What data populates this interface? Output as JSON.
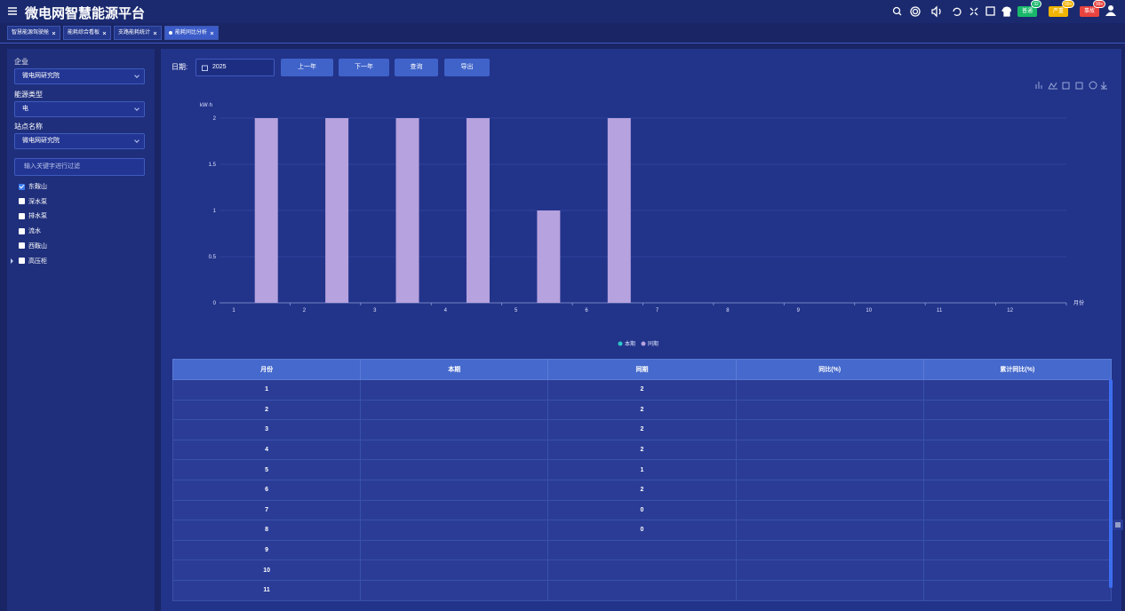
{
  "header": {
    "title": "微电网智慧能源平台",
    "alarms": [
      {
        "label": "普通",
        "count": 32,
        "color": "#19b96b"
      },
      {
        "label": "严重",
        "count": "99+",
        "color": "#f0b400"
      },
      {
        "label": "事故",
        "count": "99+",
        "color": "#e8433f"
      }
    ]
  },
  "tabs": [
    {
      "label": "智慧能源驾驶舱",
      "active": false
    },
    {
      "label": "能耗综合看板",
      "active": false
    },
    {
      "label": "支路能耗统计",
      "active": false
    },
    {
      "label": "能耗同比分析",
      "active": true
    }
  ],
  "sidebar": {
    "fields": [
      {
        "label": "企业",
        "value": "微电网研究院"
      },
      {
        "label": "能源类型",
        "value": "电"
      },
      {
        "label": "站点名称",
        "value": "微电网研究院"
      }
    ],
    "filter_placeholder": "输入关键字进行过滤",
    "tree": [
      {
        "label": "东鞍山",
        "checked": true
      },
      {
        "label": "深水泵",
        "checked": false
      },
      {
        "label": "排水泵",
        "checked": false
      },
      {
        "label": "流水",
        "checked": false
      },
      {
        "label": "西鞍山",
        "checked": false
      },
      {
        "label": "高压柜",
        "checked": false,
        "expandable": true
      }
    ]
  },
  "toolbar": {
    "date_label": "日期:",
    "date": "2025",
    "buttons": [
      "上一年",
      "下一年",
      "查询",
      "导出"
    ]
  },
  "chart_data": {
    "type": "bar",
    "y_label": "kW·h",
    "x_label": "月份",
    "categories": [
      "1",
      "2",
      "3",
      "4",
      "5",
      "6",
      "7",
      "8",
      "9",
      "10",
      "11",
      "12"
    ],
    "series": [
      {
        "name": "本期",
        "color": "#2ec7c9",
        "values": [
          null,
          null,
          null,
          null,
          null,
          null,
          null,
          null,
          null,
          null,
          null,
          null
        ]
      },
      {
        "name": "同期",
        "color": "#b6a2de",
        "values": [
          2,
          2,
          2,
          2,
          1,
          2,
          0,
          0,
          null,
          null,
          null,
          null
        ]
      }
    ],
    "ylim": [
      0,
      2
    ],
    "yticks": [
      0,
      0.5,
      1,
      1.5,
      2
    ],
    "grid": true,
    "legend": "bottom"
  },
  "table": {
    "columns": [
      "月份",
      "本期",
      "同期",
      "同比(%)",
      "累计同比(%)"
    ],
    "rows": [
      [
        1,
        null,
        2,
        null,
        null
      ],
      [
        2,
        null,
        2,
        null,
        null
      ],
      [
        3,
        null,
        2,
        null,
        null
      ],
      [
        4,
        null,
        2,
        null,
        null
      ],
      [
        5,
        null,
        1,
        null,
        null
      ],
      [
        6,
        null,
        2,
        null,
        null
      ],
      [
        7,
        null,
        0,
        null,
        null
      ],
      [
        8,
        null,
        0,
        null,
        null
      ],
      [
        9,
        null,
        null,
        null,
        null
      ],
      [
        10,
        null,
        null,
        null,
        null
      ],
      [
        11,
        null,
        null,
        null,
        null
      ]
    ]
  }
}
